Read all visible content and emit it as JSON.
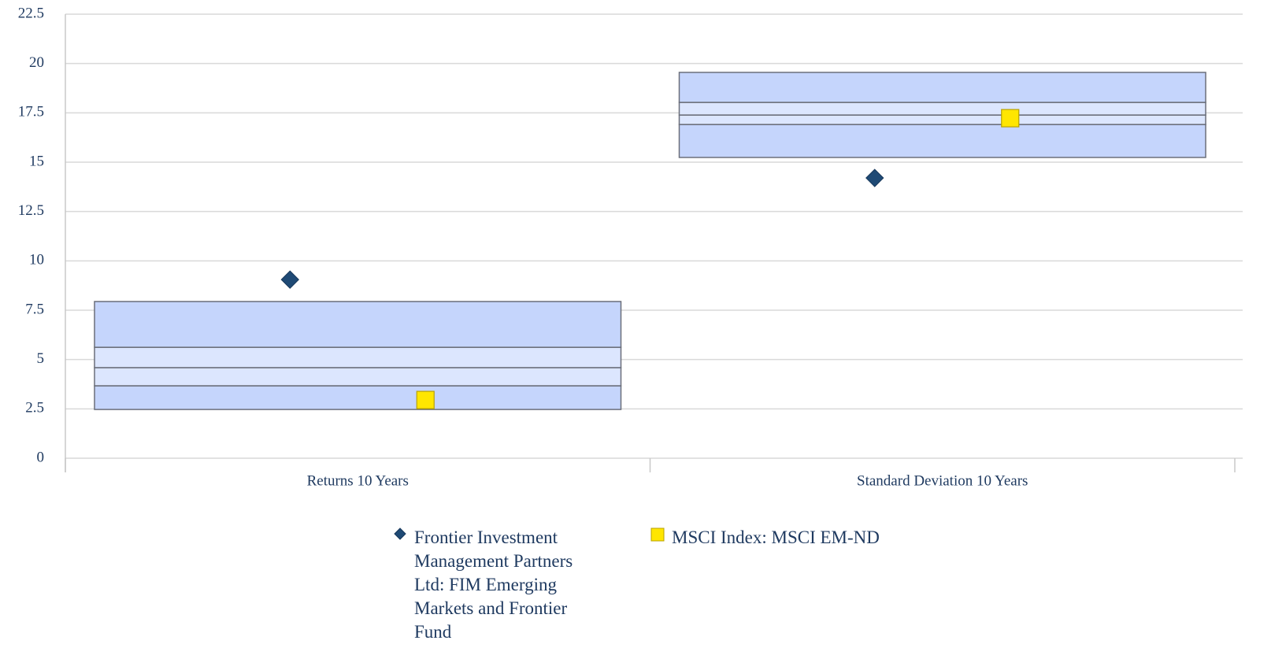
{
  "chart_data": {
    "type": "box",
    "categories": [
      "Returns 10 Years",
      "Standard Deviation 10 Years"
    ],
    "percentiles": [
      [
        2.47,
        3.67,
        4.59,
        5.62,
        7.94
      ],
      [
        15.24,
        16.91,
        17.39,
        18.03,
        19.55
      ]
    ],
    "box_color": "#c5d5fc",
    "inner_color": "#dce6fe",
    "box_edge": "#6b6f7a",
    "series": [
      {
        "name": "Frontier Investment Management Partners Ltd: FIM Emerging Markets and Frontier Fund",
        "color": "#1f4a75",
        "marker": "diamond",
        "values": [
          9.05,
          14.2
        ]
      },
      {
        "name": "MSCI Index: MSCI EM-ND",
        "color": "#ffe600",
        "marker": "square",
        "values": [
          2.95,
          17.23
        ]
      }
    ],
    "ylim": [
      0,
      22.5
    ],
    "yticks": [
      0,
      2.5,
      5,
      7.5,
      10,
      12.5,
      15,
      17.5,
      20,
      22.5
    ],
    "grid": true
  }
}
